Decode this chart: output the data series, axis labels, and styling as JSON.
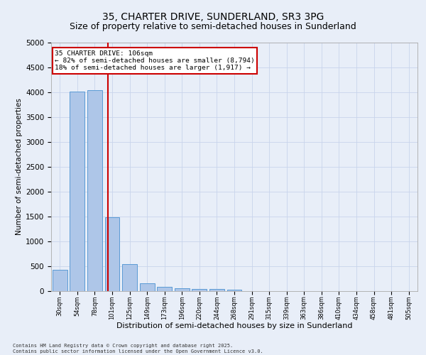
{
  "title": "35, CHARTER DRIVE, SUNDERLAND, SR3 3PG",
  "subtitle": "Size of property relative to semi-detached houses in Sunderland",
  "xlabel": "Distribution of semi-detached houses by size in Sunderland",
  "ylabel": "Number of semi-detached properties",
  "categories": [
    "30sqm",
    "54sqm",
    "78sqm",
    "101sqm",
    "125sqm",
    "149sqm",
    "173sqm",
    "196sqm",
    "220sqm",
    "244sqm",
    "268sqm",
    "291sqm",
    "315sqm",
    "339sqm",
    "363sqm",
    "386sqm",
    "410sqm",
    "434sqm",
    "458sqm",
    "481sqm",
    "505sqm"
  ],
  "values": [
    430,
    4020,
    4050,
    1480,
    550,
    160,
    90,
    60,
    50,
    40,
    35,
    0,
    0,
    0,
    0,
    0,
    0,
    0,
    0,
    0,
    0
  ],
  "bar_color": "#aec6e8",
  "bar_edge_color": "#5a9bd5",
  "vline_x": 2.75,
  "vline_color": "#cc0000",
  "annotation_title": "35 CHARTER DRIVE: 106sqm",
  "annotation_line1": "← 82% of semi-detached houses are smaller (8,794)",
  "annotation_line2": "18% of semi-detached houses are larger (1,917) →",
  "annotation_box_color": "#cc0000",
  "ylim": [
    0,
    5000
  ],
  "yticks": [
    0,
    500,
    1000,
    1500,
    2000,
    2500,
    3000,
    3500,
    4000,
    4500,
    5000
  ],
  "background_color": "#e8eef8",
  "grid_color": "#c8d4ec",
  "footer": "Contains HM Land Registry data © Crown copyright and database right 2025.\nContains public sector information licensed under the Open Government Licence v3.0.",
  "title_fontsize": 10,
  "subtitle_fontsize": 9,
  "xlabel_fontsize": 8,
  "ylabel_fontsize": 7.5
}
